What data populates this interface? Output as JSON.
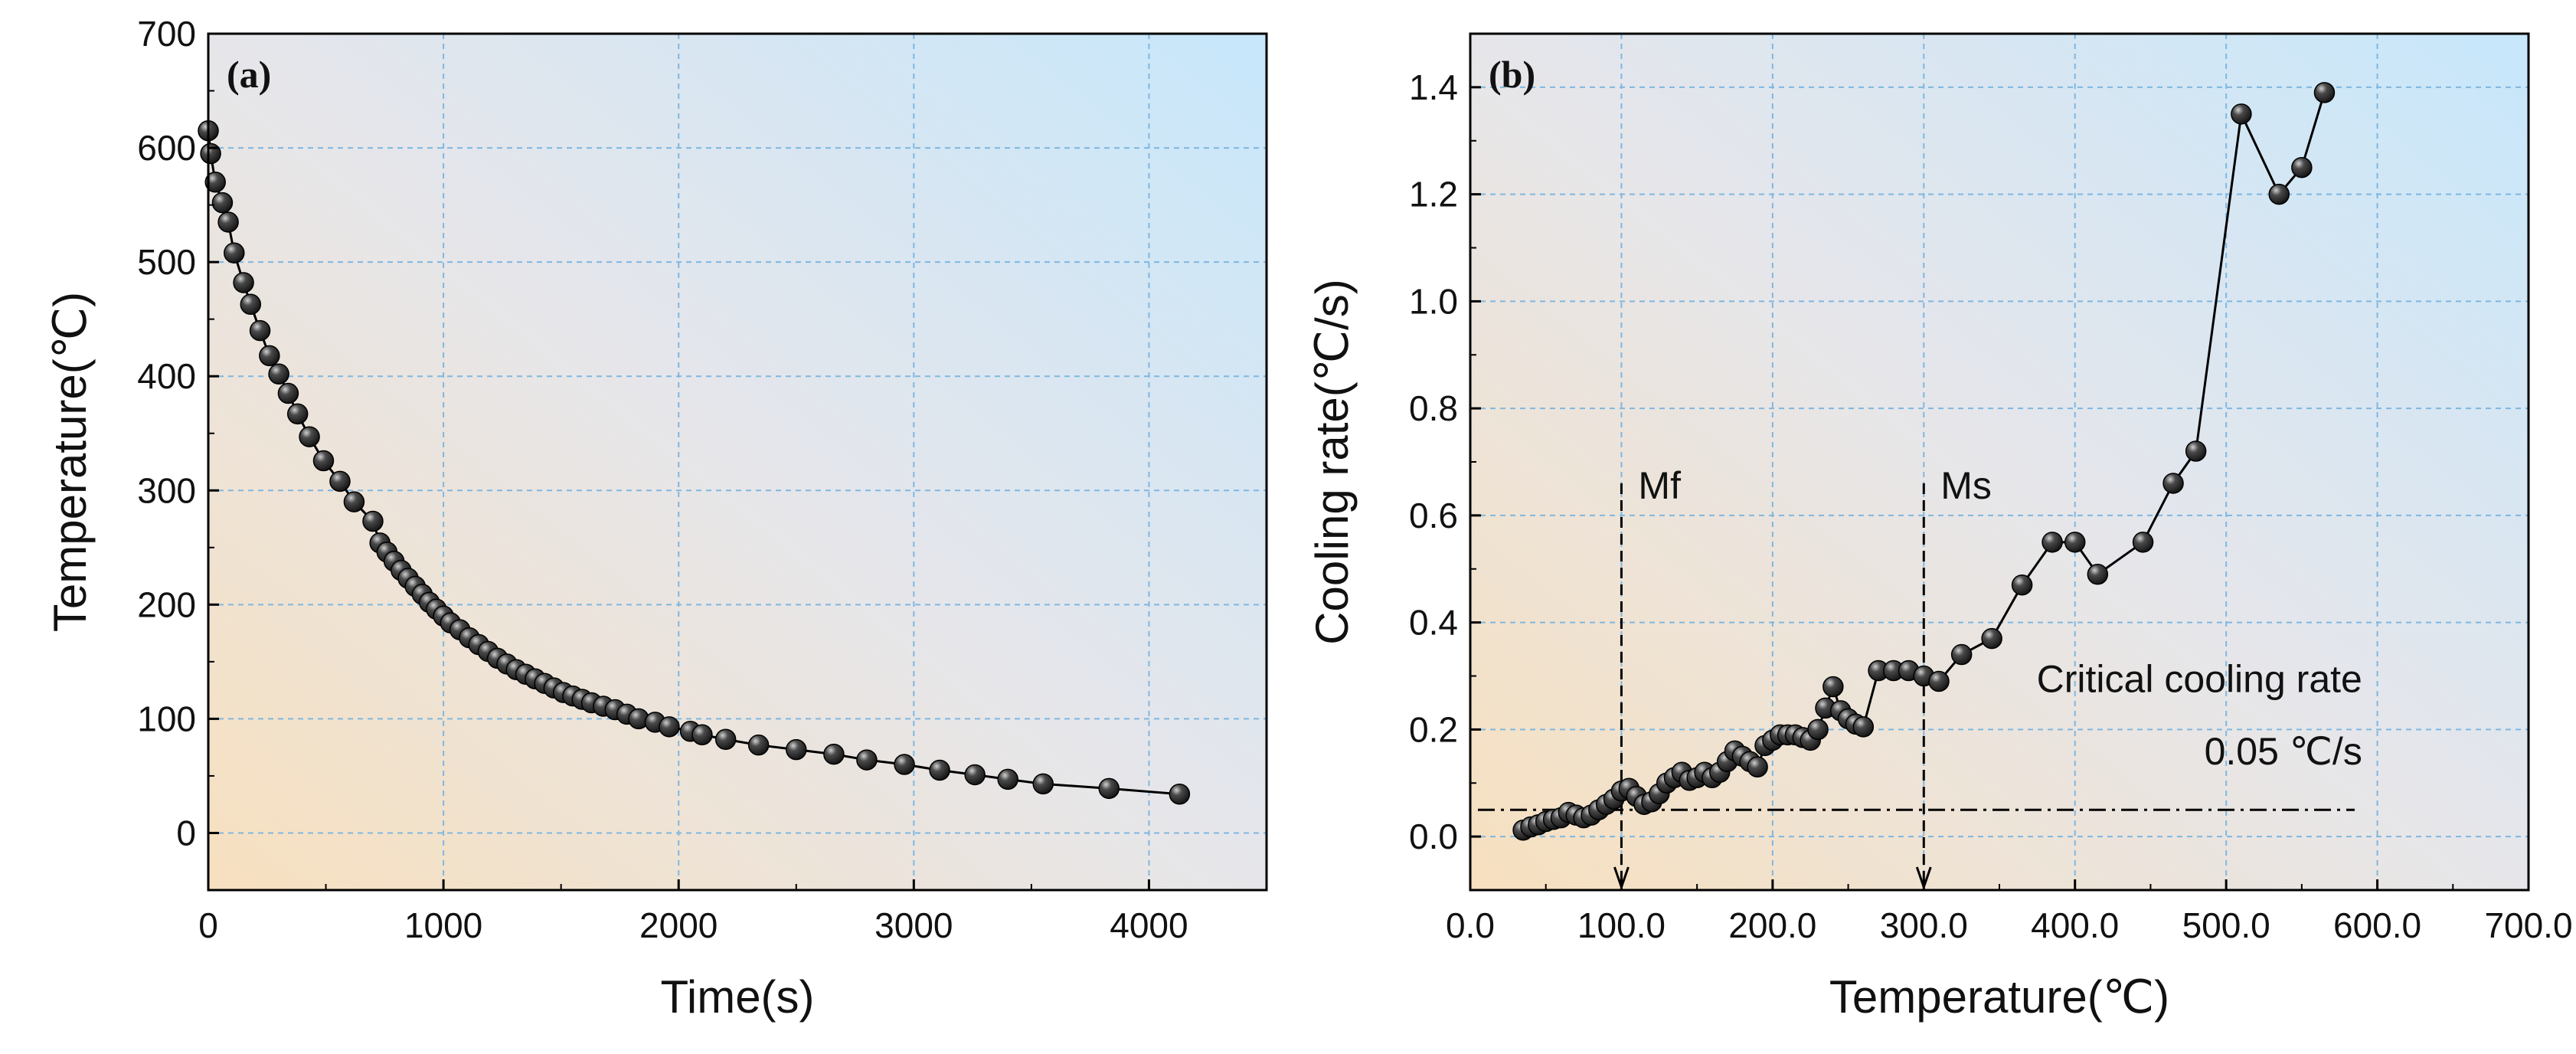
{
  "chart_data": [
    {
      "type": "scatter",
      "panel_label": "(a)",
      "title": "",
      "xlabel": "Time(s)",
      "ylabel": "Temperature(℃)",
      "xlim": [
        0,
        4500
      ],
      "ylim": [
        -50,
        700
      ],
      "xticks": [
        0,
        1000,
        2000,
        3000,
        4000
      ],
      "yticks": [
        0,
        100,
        200,
        300,
        400,
        500,
        600,
        700
      ],
      "grid": true,
      "series": [
        {
          "name": "Temperature",
          "style": "line+markers",
          "x": [
            0,
            10,
            30,
            60,
            85,
            110,
            150,
            180,
            220,
            260,
            300,
            340,
            380,
            430,
            490,
            560,
            620,
            700,
            730,
            760,
            790,
            820,
            850,
            880,
            910,
            940,
            970,
            1000,
            1030,
            1070,
            1110,
            1150,
            1190,
            1230,
            1270,
            1310,
            1350,
            1390,
            1430,
            1470,
            1510,
            1550,
            1590,
            1630,
            1680,
            1730,
            1780,
            1830,
            1900,
            1960,
            2050,
            2100,
            2200,
            2340,
            2500,
            2660,
            2800,
            2960,
            3110,
            3260,
            3400,
            3550,
            3830,
            4130
          ],
          "y": [
            615,
            595,
            570,
            552,
            535,
            508,
            482,
            463,
            440,
            418,
            402,
            385,
            367,
            347,
            326,
            308,
            290,
            273,
            254,
            246,
            238,
            230,
            223,
            216,
            209,
            202,
            196,
            190,
            184,
            178,
            171,
            165,
            159,
            153,
            148,
            143,
            139,
            135,
            131,
            127,
            123,
            120,
            117,
            114,
            111,
            108,
            104,
            100,
            97,
            93,
            89,
            86,
            82,
            77,
            73,
            69,
            64,
            60,
            55,
            51,
            47,
            43,
            39,
            34
          ]
        }
      ]
    },
    {
      "type": "scatter",
      "panel_label": "(b)",
      "title": "",
      "xlabel": "Temperature(℃)",
      "ylabel": "Cooling rate(℃/s)",
      "xlim": [
        0,
        700
      ],
      "ylim": [
        -0.1,
        1.5
      ],
      "xticks": [
        0,
        100,
        200,
        300,
        400,
        500,
        600,
        700
      ],
      "yticks": [
        0.0,
        0.2,
        0.4,
        0.6,
        0.8,
        1.0,
        1.2,
        1.4
      ],
      "grid": true,
      "series": [
        {
          "name": "Cooling rate",
          "style": "line+markers",
          "x": [
            35,
            40,
            45,
            50,
            55,
            60,
            65,
            70,
            75,
            80,
            85,
            90,
            95,
            100,
            105,
            110,
            115,
            120,
            125,
            130,
            135,
            140,
            145,
            150,
            155,
            160,
            165,
            170,
            175,
            180,
            185,
            190,
            195,
            200,
            205,
            210,
            215,
            220,
            225,
            230,
            235,
            240,
            245,
            250,
            255,
            260,
            270,
            280,
            290,
            300,
            310,
            325,
            345,
            365,
            385,
            400,
            415,
            445,
            465,
            480,
            510,
            535,
            550,
            565
          ],
          "y": [
            0.012,
            0.018,
            0.022,
            0.028,
            0.032,
            0.035,
            0.045,
            0.04,
            0.035,
            0.04,
            0.05,
            0.06,
            0.07,
            0.085,
            0.09,
            0.075,
            0.06,
            0.065,
            0.08,
            0.1,
            0.11,
            0.12,
            0.105,
            0.11,
            0.12,
            0.11,
            0.12,
            0.14,
            0.16,
            0.15,
            0.14,
            0.13,
            0.17,
            0.18,
            0.19,
            0.19,
            0.19,
            0.185,
            0.18,
            0.2,
            0.24,
            0.28,
            0.235,
            0.22,
            0.21,
            0.205,
            0.31,
            0.31,
            0.31,
            0.3,
            0.29,
            0.34,
            0.37,
            0.47,
            0.55,
            0.55,
            0.49,
            0.55,
            0.66,
            0.72,
            1.35,
            1.2,
            1.25,
            1.39
          ]
        }
      ],
      "annotations": {
        "mf_label": "Mf",
        "mf_x": 100,
        "ms_label": "Ms",
        "ms_x": 300,
        "critical_label_line1": "Critical cooling rate",
        "critical_label_line2": "0.05 ℃/s",
        "critical_value": 0.05
      }
    }
  ],
  "colors": {
    "marker_fill": "#2a2a2a",
    "marker_highlight": "#bfbfbf",
    "line": "#000000",
    "grid": "#7fb7e0",
    "bg_peach": "#f7e0bf",
    "bg_gray": "#e6e6ea",
    "bg_blue": "#c7e7fb"
  }
}
